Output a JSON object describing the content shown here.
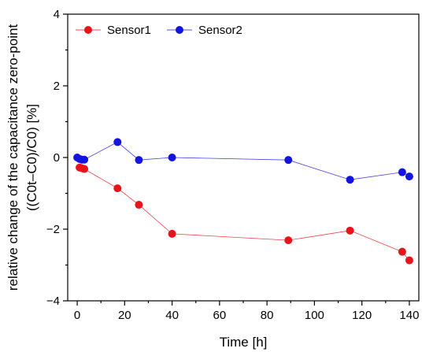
{
  "chart_data": {
    "type": "line",
    "xlabel": "Time [h]",
    "ylabel_line1": "relative change of the capacitance zero-point",
    "ylabel_line2": "((C0t–C0)/C0) [%]",
    "xlim": [
      -4,
      144
    ],
    "ylim": [
      -4,
      4
    ],
    "xticks": [
      0,
      20,
      40,
      60,
      80,
      100,
      120,
      140
    ],
    "yticks": [
      -4,
      -2,
      0,
      2,
      4
    ],
    "legend_position": "top-left",
    "series": [
      {
        "name": "Sensor1",
        "color": "#e8141b",
        "x": [
          1,
          2,
          3,
          17,
          26,
          40,
          89,
          115,
          137,
          140
        ],
        "y": [
          -0.28,
          -0.3,
          -0.32,
          -0.86,
          -1.32,
          -2.13,
          -2.31,
          -2.04,
          -2.63,
          -2.87
        ]
      },
      {
        "name": "Sensor2",
        "color": "#1414e0",
        "x": [
          0,
          1,
          2,
          3,
          17,
          26,
          40,
          89,
          115,
          137,
          140
        ],
        "y": [
          0.0,
          -0.04,
          -0.06,
          -0.06,
          0.43,
          -0.07,
          0.0,
          -0.07,
          -0.62,
          -0.41,
          -0.53
        ]
      }
    ]
  }
}
